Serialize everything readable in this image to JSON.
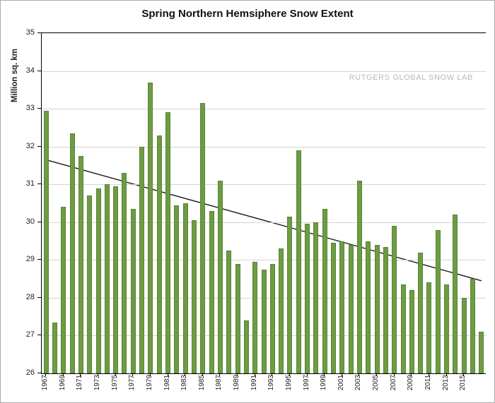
{
  "watermark": {
    "text": "RUTGERS GLOBAL SNOW LAB",
    "color": "#b8b8b8"
  },
  "chart_data": {
    "type": "bar",
    "title": "Spring Northern Hemsiphere Snow Extent",
    "ylabel": "Million sq. km",
    "ylim": [
      26,
      35
    ],
    "grid": true,
    "legend": null,
    "y_tick_labels": [
      "26",
      "27",
      "28",
      "29",
      "30",
      "31",
      "32",
      "33",
      "34",
      "35"
    ],
    "x_tick_labels": [
      "1967",
      "1969",
      "1971",
      "1973",
      "1975",
      "1977",
      "1979",
      "1981",
      "1983",
      "1985",
      "1987",
      "1989",
      "1991",
      "1993",
      "1995",
      "1997",
      "1999",
      "2001",
      "2003",
      "2005",
      "2007",
      "2009",
      "2011",
      "2013",
      "2015"
    ],
    "categories": [
      1967,
      1968,
      1969,
      1970,
      1971,
      1972,
      1973,
      1974,
      1975,
      1976,
      1977,
      1978,
      1979,
      1980,
      1981,
      1982,
      1983,
      1984,
      1985,
      1986,
      1987,
      1988,
      1989,
      1990,
      1991,
      1992,
      1993,
      1994,
      1995,
      1996,
      1997,
      1998,
      1999,
      2000,
      2001,
      2002,
      2003,
      2004,
      2005,
      2006,
      2007,
      2008,
      2009,
      2010,
      2011,
      2012,
      2013,
      2014,
      2015,
      2016,
      2017
    ],
    "values": [
      32.95,
      27.35,
      30.4,
      32.35,
      31.75,
      30.7,
      30.9,
      31.0,
      30.95,
      31.3,
      30.35,
      32.0,
      33.7,
      32.3,
      32.9,
      30.45,
      30.5,
      30.05,
      33.15,
      30.3,
      31.1,
      29.25,
      28.9,
      27.4,
      28.95,
      28.75,
      28.9,
      29.3,
      30.15,
      31.9,
      29.95,
      30.0,
      30.35,
      29.45,
      29.5,
      29.4,
      31.1,
      29.5,
      29.4,
      29.35,
      29.9,
      28.35,
      28.2,
      29.2,
      28.4,
      29.8,
      28.35,
      30.2,
      28.0,
      28.5,
      27.1
    ],
    "bar_color": "#6d9c43",
    "bar_border_color": "#5a8234",
    "grid_color": "#d4d4d4",
    "axis_color": "#000000",
    "trend_line": {
      "start_year": 1967,
      "start_value": 31.65,
      "end_year": 2017,
      "end_value": 28.45,
      "color": "#1a1a1a"
    }
  }
}
